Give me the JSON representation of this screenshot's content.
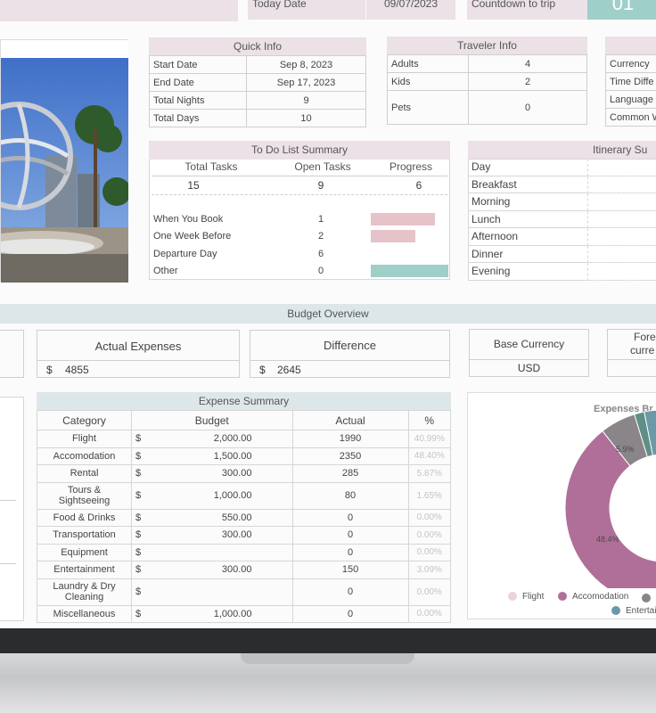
{
  "top": {
    "today_label": "Today Date",
    "today_value": "09/07/2023",
    "countdown_label": "Countdown to trip",
    "countdown_value": "01"
  },
  "quick_info": {
    "title": "Quick Info",
    "rows": [
      {
        "label": "Start Date",
        "value": "Sep 8, 2023"
      },
      {
        "label": "End Date",
        "value": "Sep 17, 2023"
      },
      {
        "label": "Total Nights",
        "value": "9"
      },
      {
        "label": "Total Days",
        "value": "10"
      }
    ]
  },
  "traveler_info": {
    "title": "Traveler Info",
    "rows": [
      {
        "label": "Adults",
        "value": "4"
      },
      {
        "label": "Kids",
        "value": "2"
      },
      {
        "label": "Pets",
        "value": "0"
      }
    ]
  },
  "right_info": {
    "rows": [
      "Currency",
      "Time Diffe",
      "Language",
      "Common W"
    ]
  },
  "todo": {
    "title": "To Do List Summary",
    "headers": [
      "Total Tasks",
      "Open Tasks",
      "Progress"
    ],
    "values": [
      "15",
      "9",
      "6"
    ],
    "rows": [
      {
        "label": "When You Book",
        "value": "1",
        "fill": 0.83,
        "color": "#e6c3c8"
      },
      {
        "label": "One Week Before",
        "value": "2",
        "fill": 0.58,
        "color": "#e6c3c8"
      },
      {
        "label": "Departure Day",
        "value": "6",
        "fill": 0,
        "color": "#e6c3c8"
      },
      {
        "label": "Other",
        "value": "0",
        "fill": 1,
        "color": "#9ecfc8"
      }
    ]
  },
  "itinerary": {
    "title": "Itinerary Su",
    "rows": [
      "Day",
      "Breakfast",
      "Morning",
      "Lunch",
      "Afternoon",
      "Dinner",
      "Evening"
    ]
  },
  "budget": {
    "title": "Budget Overview",
    "actual_label": "Actual Expenses",
    "actual_currency": "$",
    "actual_value": "4855",
    "diff_label": "Difference",
    "diff_currency": "$",
    "diff_value": "2645",
    "base_label": "Base Currency",
    "base_value": "USD",
    "foreign_label_1": "Fore",
    "foreign_label_2": "curre"
  },
  "expense_summary": {
    "title": "Expense Summary",
    "headers": [
      "Category",
      "Budget",
      "Actual",
      "%"
    ],
    "rows": [
      {
        "category": "Flight",
        "cur": "$",
        "budget": "2,000.00",
        "actual": "1990",
        "pct": "40.99%"
      },
      {
        "category": "Accomodation",
        "cur": "$",
        "budget": "1,500.00",
        "actual": "2350",
        "pct": "48.40%"
      },
      {
        "category": "Rental",
        "cur": "$",
        "budget": "300.00",
        "actual": "285",
        "pct": "5.87%"
      },
      {
        "category": "Tours & Sightseeing",
        "cur": "$",
        "budget": "1,000.00",
        "actual": "80",
        "pct": "1.65%"
      },
      {
        "category": "Food & Drinks",
        "cur": "$",
        "budget": "550.00",
        "actual": "0",
        "pct": "0.00%"
      },
      {
        "category": "Transportation",
        "cur": "$",
        "budget": "300.00",
        "actual": "0",
        "pct": "0.00%"
      },
      {
        "category": "Equipment",
        "cur": "$",
        "budget": "",
        "actual": "0",
        "pct": "0.00%"
      },
      {
        "category": "Entertainment",
        "cur": "$",
        "budget": "300.00",
        "actual": "150",
        "pct": "3.09%"
      },
      {
        "category": "Laundry & Dry Cleaning",
        "cur": "$",
        "budget": "",
        "actual": "0",
        "pct": "0.00%"
      },
      {
        "category": "Miscellaneous",
        "cur": "$",
        "budget": "1,000.00",
        "actual": "0",
        "pct": "0.00%"
      }
    ]
  },
  "chart_data": {
    "type": "pie",
    "title": "Expenses Br",
    "slices": [
      {
        "name": "Flight",
        "value": 40.99,
        "color": "#ead3dc"
      },
      {
        "name": "Accomodation",
        "value": 48.4,
        "color": "#b06f98"
      },
      {
        "name": "Rental",
        "value": 5.87,
        "color": "#8a8588"
      },
      {
        "name": "Tours & Sightseeing",
        "value": 1.65,
        "color": "#5f8f86"
      },
      {
        "name": "Entertainment",
        "value": 3.09,
        "color": "#6a99a8"
      }
    ],
    "data_labels": [
      "5.9%",
      "48.4%"
    ],
    "legend": [
      {
        "name": "Flight",
        "color": "#ead3dc"
      },
      {
        "name": "Accomodation",
        "color": "#b06f98"
      },
      {
        "name": "Entertai",
        "color": "#6a99a8"
      }
    ]
  }
}
